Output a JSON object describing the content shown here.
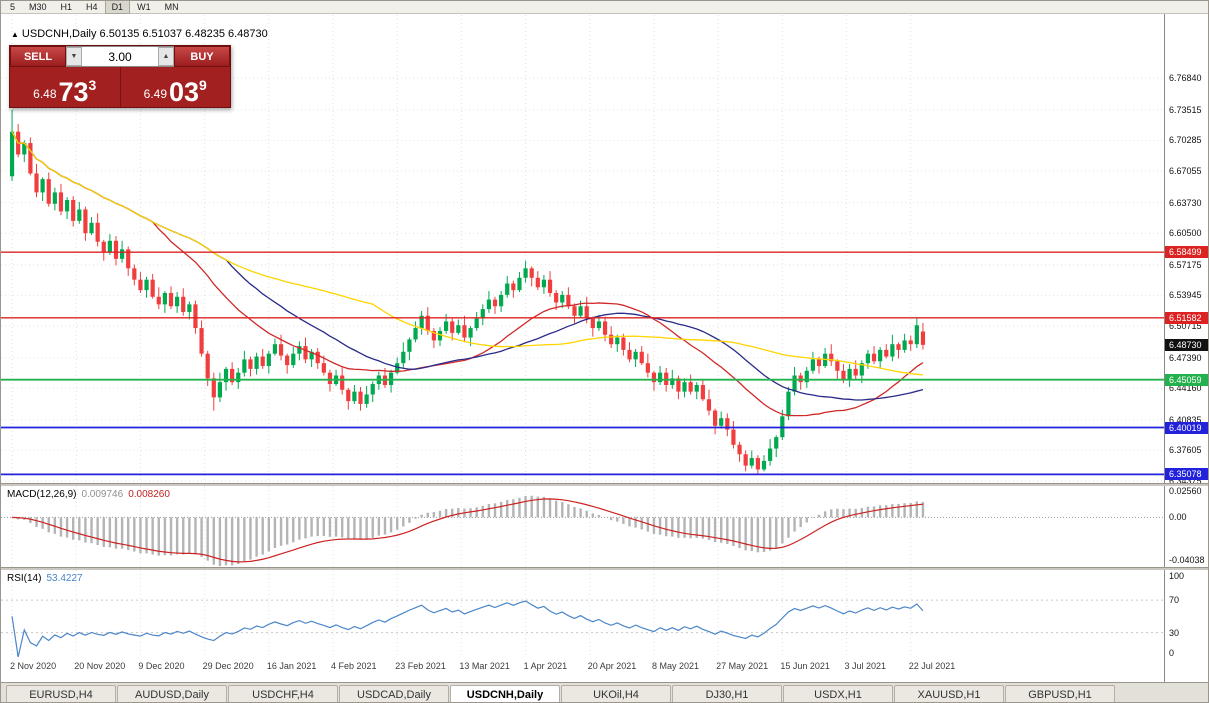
{
  "toolbar": {
    "timeframes": [
      "5",
      "M30",
      "H1",
      "H4",
      "D1",
      "W1",
      "MN"
    ],
    "active_timeframe": "D1"
  },
  "icons": {
    "title_marker": "▲",
    "spin_down": "▼",
    "spin_up": "▲"
  },
  "chart_title": {
    "symbol": "USDCNH,Daily",
    "ohlc": "6.50135 6.51037 6.48235 6.48730"
  },
  "trade_panel": {
    "sell_label": "SELL",
    "buy_label": "BUY",
    "volume": "3.00",
    "sell_price": {
      "prefix": "6.48",
      "big": "73",
      "sup": "3"
    },
    "buy_price": {
      "prefix": "6.49",
      "big": "03",
      "sup": "9"
    }
  },
  "price_axis": {
    "ticks": [
      "6.76840",
      "6.73515",
      "6.70285",
      "6.67055",
      "6.63730",
      "6.60500",
      "6.57175",
      "6.53945",
      "6.50715",
      "6.47390",
      "6.44160",
      "6.40835",
      "6.37605",
      "6.34375"
    ],
    "current_price": "6.48730"
  },
  "levels": [
    {
      "price": 6.58499,
      "label": "6.58499",
      "color": "#dd2222",
      "width": 1.3
    },
    {
      "price": 6.51582,
      "label": "6.51582",
      "color": "#dd2222",
      "width": 1.3
    },
    {
      "price": 6.45059,
      "label": "6.45059",
      "color": "#22b14c",
      "width": 1.8
    },
    {
      "price": 6.40019,
      "label": "6.40019",
      "color": "#2222dd",
      "width": 1.8
    },
    {
      "price": 6.35078,
      "label": "6.35078",
      "color": "#2222dd",
      "width": 1.8
    }
  ],
  "macd": {
    "label": "MACD(12,26,9)",
    "value_main": "0.009746",
    "value_signal": "0.008260",
    "axis_ticks": [
      "0.02560",
      "0.00",
      "-0.04038"
    ],
    "range": [
      -0.0475,
      0.03
    ],
    "fast": 12,
    "slow": 26,
    "signal": 9
  },
  "rsi": {
    "label": "RSI(14)",
    "value": "53.4227",
    "axis_ticks": [
      "100",
      "70",
      "30",
      "0"
    ],
    "range": [
      0,
      107
    ],
    "guides": [
      70,
      30
    ],
    "period": 14
  },
  "tabs": [
    "EURUSD,H4",
    "AUDUSD,Daily",
    "USDCHF,H4",
    "USDCAD,Daily",
    "USDCNH,Daily",
    "UKOil,H4",
    "DJ30,H1",
    "USDX,H1",
    "XAUUSD,H1",
    "GBPUSD,H1"
  ],
  "active_tab": "USDCNH,Daily",
  "colors": {
    "up_candle": "#00a94f",
    "down_candle": "#f03e3e",
    "ma_fast": "#d02828",
    "ma_mid": "#2a2a8a",
    "ma_slow": "#ffd400",
    "macd_histogram": "#b4b4b4",
    "macd_signal": "#cc2222",
    "rsi_line": "#4a86c8",
    "grid": "#e2e2e2",
    "current_badge_bg": "#111111"
  },
  "chart_data": {
    "type": "candlestick",
    "title": "USDCNH, Daily",
    "ylim": [
      6.3417,
      6.835
    ],
    "x_labels": [
      "2 Nov 2020",
      "20 Nov 2020",
      "9 Dec 2020",
      "29 Dec 2020",
      "16 Jan 2021",
      "4 Feb 2021",
      "23 Feb 2021",
      "13 Mar 2021",
      "1 Apr 2021",
      "20 Apr 2021",
      "8 May 2021",
      "27 May 2021",
      "15 Jun 2021",
      "3 Jul 2021",
      "22 Jul 2021"
    ],
    "moving_averages": [
      {
        "period": 24,
        "color_key": "ma_fast"
      },
      {
        "period": 36,
        "color_key": "ma_mid"
      },
      {
        "period": 60,
        "color_key": "ma_slow"
      }
    ],
    "indicators": [
      "MACD(12,26,9) = 0.009746 / 0.008260",
      "RSI(14) = 53.4227"
    ],
    "candles": [
      [
        6.665,
        6.735,
        6.66,
        6.712
      ],
      [
        6.712,
        6.72,
        6.685,
        6.688
      ],
      [
        6.688,
        6.703,
        6.68,
        6.7
      ],
      [
        6.7,
        6.706,
        6.666,
        6.668
      ],
      [
        6.668,
        6.678,
        6.643,
        6.648
      ],
      [
        6.648,
        6.664,
        6.639,
        6.662
      ],
      [
        6.662,
        6.669,
        6.633,
        6.636
      ],
      [
        6.636,
        6.653,
        6.629,
        6.648
      ],
      [
        6.648,
        6.657,
        6.624,
        6.628
      ],
      [
        6.628,
        6.643,
        6.62,
        6.64
      ],
      [
        6.64,
        6.644,
        6.612,
        6.618
      ],
      [
        6.618,
        6.638,
        6.615,
        6.63
      ],
      [
        6.63,
        6.633,
        6.597,
        6.605
      ],
      [
        6.605,
        6.622,
        6.603,
        6.616
      ],
      [
        6.616,
        6.626,
        6.591,
        6.596
      ],
      [
        6.596,
        6.598,
        6.576,
        6.585
      ],
      [
        6.585,
        6.604,
        6.582,
        6.597
      ],
      [
        6.597,
        6.602,
        6.571,
        6.578
      ],
      [
        6.578,
        6.597,
        6.574,
        6.588
      ],
      [
        6.588,
        6.591,
        6.56,
        6.568
      ],
      [
        6.568,
        6.572,
        6.55,
        6.556
      ],
      [
        6.556,
        6.564,
        6.542,
        6.545
      ],
      [
        6.545,
        6.559,
        6.537,
        6.556
      ],
      [
        6.556,
        6.562,
        6.536,
        6.538
      ],
      [
        6.538,
        6.548,
        6.525,
        6.53
      ],
      [
        6.53,
        6.544,
        6.521,
        6.542
      ],
      [
        6.542,
        6.549,
        6.525,
        6.528
      ],
      [
        6.528,
        6.543,
        6.521,
        6.538
      ],
      [
        6.538,
        6.547,
        6.518,
        6.522
      ],
      [
        6.522,
        6.533,
        6.514,
        6.53
      ],
      [
        6.53,
        6.534,
        6.499,
        6.505
      ],
      [
        6.505,
        6.513,
        6.475,
        6.478
      ],
      [
        6.478,
        6.481,
        6.444,
        6.452
      ],
      [
        6.452,
        6.458,
        6.418,
        6.432
      ],
      [
        6.432,
        6.458,
        6.427,
        6.448
      ],
      [
        6.448,
        6.464,
        6.439,
        6.462
      ],
      [
        6.462,
        6.469,
        6.445,
        6.448
      ],
      [
        6.448,
        6.463,
        6.441,
        6.458
      ],
      [
        6.458,
        6.481,
        6.454,
        6.472
      ],
      [
        6.472,
        6.475,
        6.454,
        6.462
      ],
      [
        6.462,
        6.479,
        6.456,
        6.475
      ],
      [
        6.475,
        6.483,
        6.462,
        6.465
      ],
      [
        6.465,
        6.481,
        6.457,
        6.478
      ],
      [
        6.478,
        6.494,
        6.476,
        6.488
      ],
      [
        6.488,
        6.498,
        6.471,
        6.476
      ],
      [
        6.476,
        6.478,
        6.457,
        6.466
      ],
      [
        6.466,
        6.485,
        6.463,
        6.478
      ],
      [
        6.478,
        6.491,
        6.471,
        6.486
      ],
      [
        6.486,
        6.495,
        6.468,
        6.472
      ],
      [
        6.472,
        6.483,
        6.464,
        6.48
      ],
      [
        6.48,
        6.484,
        6.462,
        6.468
      ],
      [
        6.468,
        6.476,
        6.455,
        6.458
      ],
      [
        6.458,
        6.461,
        6.438,
        6.446
      ],
      [
        6.446,
        6.461,
        6.444,
        6.455
      ],
      [
        6.455,
        6.465,
        6.435,
        6.44
      ],
      [
        6.44,
        6.442,
        6.419,
        6.428
      ],
      [
        6.428,
        6.445,
        6.425,
        6.438
      ],
      [
        6.438,
        6.443,
        6.418,
        6.425
      ],
      [
        6.425,
        6.444,
        6.421,
        6.435
      ],
      [
        6.435,
        6.449,
        6.427,
        6.446
      ],
      [
        6.446,
        6.459,
        6.44,
        6.455
      ],
      [
        6.455,
        6.463,
        6.442,
        6.445
      ],
      [
        6.445,
        6.461,
        6.437,
        6.458
      ],
      [
        6.458,
        6.474,
        6.456,
        6.468
      ],
      [
        6.468,
        6.49,
        6.463,
        6.48
      ],
      [
        6.48,
        6.495,
        6.471,
        6.493
      ],
      [
        6.493,
        6.512,
        6.49,
        6.505
      ],
      [
        6.505,
        6.523,
        6.498,
        6.518
      ],
      [
        6.518,
        6.527,
        6.498,
        6.502
      ],
      [
        6.502,
        6.505,
        6.484,
        6.492
      ],
      [
        6.492,
        6.506,
        6.486,
        6.502
      ],
      [
        6.502,
        6.52,
        6.499,
        6.512
      ],
      [
        6.512,
        6.515,
        6.492,
        6.5
      ],
      [
        6.5,
        6.514,
        6.498,
        6.508
      ],
      [
        6.508,
        6.518,
        6.49,
        6.495
      ],
      [
        6.495,
        6.507,
        6.486,
        6.505
      ],
      [
        6.505,
        6.522,
        6.502,
        6.515
      ],
      [
        6.515,
        6.53,
        6.508,
        6.525
      ],
      [
        6.525,
        6.544,
        6.521,
        6.535
      ],
      [
        6.535,
        6.538,
        6.52,
        6.528
      ],
      [
        6.528,
        6.544,
        6.522,
        6.54
      ],
      [
        6.54,
        6.56,
        6.537,
        6.552
      ],
      [
        6.552,
        6.555,
        6.537,
        6.545
      ],
      [
        6.545,
        6.564,
        6.543,
        6.558
      ],
      [
        6.558,
        6.576,
        6.553,
        6.568
      ],
      [
        6.568,
        6.57,
        6.549,
        6.558
      ],
      [
        6.558,
        6.565,
        6.545,
        6.548
      ],
      [
        6.548,
        6.561,
        6.541,
        6.556
      ],
      [
        6.556,
        6.565,
        6.538,
        6.542
      ],
      [
        6.542,
        6.545,
        6.524,
        6.532
      ],
      [
        6.532,
        6.544,
        6.526,
        6.54
      ],
      [
        6.54,
        6.548,
        6.525,
        6.528
      ],
      [
        6.528,
        6.531,
        6.51,
        6.518
      ],
      [
        6.518,
        6.534,
        6.516,
        6.528
      ],
      [
        6.528,
        6.538,
        6.51,
        6.515
      ],
      [
        6.515,
        6.517,
        6.496,
        6.505
      ],
      [
        6.505,
        6.519,
        6.502,
        6.512
      ],
      [
        6.512,
        6.517,
        6.491,
        6.498
      ],
      [
        6.498,
        6.507,
        6.484,
        6.488
      ],
      [
        6.488,
        6.498,
        6.48,
        6.495
      ],
      [
        6.495,
        6.499,
        6.476,
        6.482
      ],
      [
        6.482,
        6.49,
        6.469,
        6.472
      ],
      [
        6.472,
        6.483,
        6.464,
        6.48
      ],
      [
        6.48,
        6.486,
        6.466,
        6.468
      ],
      [
        6.468,
        6.478,
        6.453,
        6.458
      ],
      [
        6.458,
        6.46,
        6.439,
        6.448
      ],
      [
        6.448,
        6.465,
        6.445,
        6.458
      ],
      [
        6.458,
        6.463,
        6.438,
        6.445
      ],
      [
        6.445,
        6.461,
        6.441,
        6.452
      ],
      [
        6.452,
        6.455,
        6.43,
        6.438
      ],
      [
        6.438,
        6.452,
        6.432,
        6.448
      ],
      [
        6.448,
        6.456,
        6.435,
        6.438
      ],
      [
        6.438,
        6.448,
        6.43,
        6.445
      ],
      [
        6.445,
        6.451,
        6.428,
        6.43
      ],
      [
        6.43,
        6.44,
        6.413,
        6.418
      ],
      [
        6.418,
        6.42,
        6.393,
        6.402
      ],
      [
        6.402,
        6.417,
        6.399,
        6.41
      ],
      [
        6.41,
        6.415,
        6.391,
        6.398
      ],
      [
        6.398,
        6.407,
        6.378,
        6.382
      ],
      [
        6.382,
        6.385,
        6.364,
        6.372
      ],
      [
        6.372,
        6.376,
        6.354,
        6.36
      ],
      [
        6.36,
        6.376,
        6.357,
        6.368
      ],
      [
        6.368,
        6.371,
        6.3508,
        6.356
      ],
      [
        6.356,
        6.371,
        6.354,
        6.365
      ],
      [
        6.365,
        6.388,
        6.36,
        6.378
      ],
      [
        6.378,
        6.392,
        6.369,
        6.39
      ],
      [
        6.39,
        6.419,
        6.387,
        6.412
      ],
      [
        6.412,
        6.443,
        6.408,
        6.438
      ],
      [
        6.438,
        6.464,
        6.434,
        6.455
      ],
      [
        6.455,
        6.458,
        6.44,
        6.448
      ],
      [
        6.448,
        6.464,
        6.442,
        6.46
      ],
      [
        6.46,
        6.48,
        6.457,
        6.472
      ],
      [
        6.472,
        6.475,
        6.457,
        6.465
      ],
      [
        6.465,
        6.484,
        6.463,
        6.478
      ],
      [
        6.478,
        6.488,
        6.465,
        6.47
      ],
      [
        6.47,
        6.472,
        6.451,
        6.46
      ],
      [
        6.46,
        6.467,
        6.447,
        6.45
      ],
      [
        6.45,
        6.467,
        6.443,
        6.462
      ],
      [
        6.462,
        6.471,
        6.451,
        6.455
      ],
      [
        6.455,
        6.471,
        6.447,
        6.468
      ],
      [
        6.468,
        6.482,
        6.462,
        6.478
      ],
      [
        6.478,
        6.486,
        6.467,
        6.47
      ],
      [
        6.47,
        6.485,
        6.462,
        6.482
      ],
      [
        6.482,
        6.488,
        6.473,
        6.475
      ],
      [
        6.475,
        6.498,
        6.47,
        6.488
      ],
      [
        6.488,
        6.49,
        6.473,
        6.482
      ],
      [
        6.482,
        6.499,
        6.479,
        6.492
      ],
      [
        6.492,
        6.497,
        6.481,
        6.488
      ],
      [
        6.488,
        6.5158,
        6.484,
        6.508
      ],
      [
        6.50135,
        6.51037,
        6.48235,
        6.4873
      ]
    ]
  }
}
